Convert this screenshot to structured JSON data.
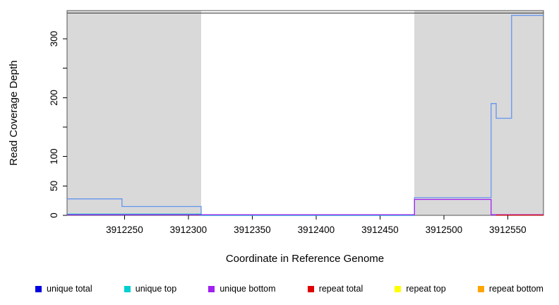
{
  "figure": {
    "background": "#ffffff"
  },
  "chart_data": {
    "type": "line",
    "title": "",
    "xlabel": "Coordinate in Reference Genome",
    "ylabel": "Read Coverage Depth",
    "xlim": [
      3912205,
      3912578
    ],
    "ylim": [
      0,
      348
    ],
    "xticks": [
      3912250,
      3912300,
      3912350,
      3912400,
      3912450,
      3912500,
      3912550
    ],
    "yticks": [
      0,
      50,
      100,
      150,
      200,
      250,
      300
    ],
    "ytick_labels": [
      "0",
      "50",
      "100",
      "",
      "200",
      "",
      "300"
    ],
    "grid": false,
    "frame_color": "#555555",
    "tick_color": "#000000",
    "top_line": {
      "y": 344,
      "color": "#333333"
    },
    "shaded_regions": [
      {
        "x0": 3912205,
        "x1": 3912310,
        "color": "#d9d9d9"
      },
      {
        "x0": 3912477,
        "x1": 3912578,
        "color": "#d9d9d9"
      }
    ],
    "series": [
      {
        "name": "unique total",
        "color": "#6495ed",
        "step": true,
        "points": [
          [
            3912205,
            28
          ],
          [
            3912248,
            28
          ],
          [
            3912248,
            15
          ],
          [
            3912310,
            15
          ],
          [
            3912310,
            0
          ],
          [
            3912477,
            0
          ],
          [
            3912477,
            30
          ],
          [
            3912537,
            30
          ],
          [
            3912537,
            190
          ],
          [
            3912541,
            190
          ],
          [
            3912541,
            165
          ],
          [
            3912553,
            165
          ],
          [
            3912553,
            340
          ],
          [
            3912578,
            340
          ]
        ]
      },
      {
        "name": "unique top",
        "color": "#00ced1",
        "step": true,
        "points": [
          [
            3912205,
            2
          ],
          [
            3912310,
            2
          ],
          [
            3912310,
            0
          ],
          [
            3912477,
            0
          ]
        ]
      },
      {
        "name": "unique bottom",
        "color": "#a020f0",
        "step": true,
        "points": [
          [
            3912205,
            1
          ],
          [
            3912477,
            1
          ],
          [
            3912477,
            27
          ],
          [
            3912537,
            27
          ],
          [
            3912537,
            1
          ],
          [
            3912578,
            1
          ]
        ]
      },
      {
        "name": "repeat total",
        "color": "#e00000",
        "step": true,
        "points": [
          [
            3912541,
            0.5
          ],
          [
            3912578,
            0.5
          ]
        ]
      }
    ],
    "legend_position": "bottom"
  },
  "legend": {
    "items": [
      {
        "label": "unique total",
        "color": "#0000e0"
      },
      {
        "label": "unique top",
        "color": "#00ced1"
      },
      {
        "label": "unique bottom",
        "color": "#a020f0"
      },
      {
        "label": "repeat total",
        "color": "#e00000"
      },
      {
        "label": "repeat top",
        "color": "#ffff00"
      },
      {
        "label": "repeat bottom",
        "color": "#ffa500"
      }
    ]
  }
}
